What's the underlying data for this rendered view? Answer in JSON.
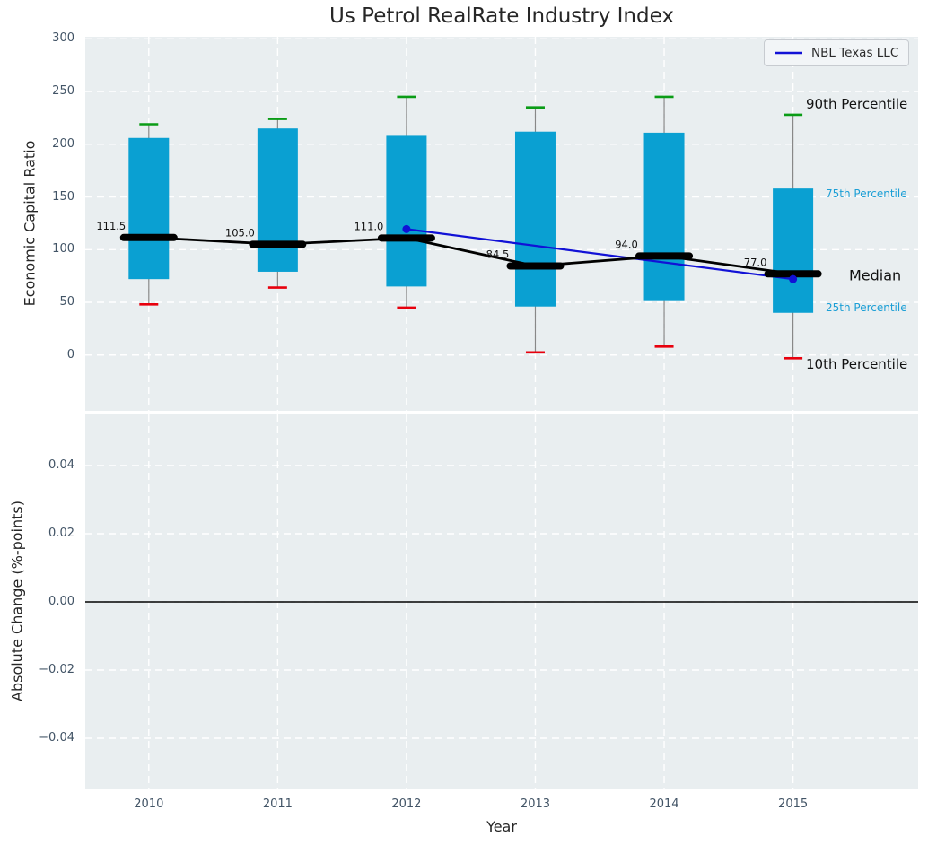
{
  "chart_data": {
    "type": "boxplot_timeseries_with_line",
    "title": "Us Petrol RealRate Industry Index",
    "xlabel": "Year",
    "categories": [
      "2010",
      "2011",
      "2012",
      "2013",
      "2014",
      "2015"
    ],
    "legend_label": "NBL Texas LLC",
    "top_panel": {
      "ylabel": "Economic Capital Ratio",
      "ylim": [
        -53,
        302
      ],
      "yticks": [
        {
          "value": 0,
          "label": "0"
        },
        {
          "value": 50,
          "label": "50"
        },
        {
          "value": 100,
          "label": "100"
        },
        {
          "value": 150,
          "label": "150"
        },
        {
          "value": 200,
          "label": "200"
        },
        {
          "value": 250,
          "label": "250"
        },
        {
          "value": 300,
          "label": "300"
        }
      ],
      "boxes": [
        {
          "year": "2010",
          "p90": 219,
          "p75": 206,
          "median": 111.5,
          "p25": 72,
          "p10": 48,
          "median_label": "111.5"
        },
        {
          "year": "2011",
          "p90": 224,
          "p75": 215,
          "median": 105.0,
          "p25": 79,
          "p10": 64,
          "median_label": "105.0"
        },
        {
          "year": "2012",
          "p90": 245,
          "p75": 208,
          "median": 111.0,
          "p25": 65,
          "p10": 45,
          "median_label": "111.0"
        },
        {
          "year": "2013",
          "p90": 235,
          "p75": 212,
          "median": 84.5,
          "p25": 46,
          "p10": 2.5,
          "median_label": "84.5"
        },
        {
          "year": "2014",
          "p90": 245,
          "p75": 211,
          "median": 94.0,
          "p25": 52,
          "p10": 8,
          "median_label": "94.0"
        },
        {
          "year": "2015",
          "p90": 228,
          "p75": 158,
          "median": 77.0,
          "p25": 40,
          "p10": -3,
          "median_label": "77.0"
        }
      ],
      "nbl_series": {
        "name": "NBL Texas LLC",
        "points": [
          {
            "year": "2012",
            "value": 119.5
          },
          {
            "year": "2015",
            "value": 72
          }
        ]
      },
      "percentile_annotations": [
        {
          "text": "90th Percentile",
          "style": "dark"
        },
        {
          "text": "75th Percentile",
          "style": "blue"
        },
        {
          "text": "Median",
          "style": "dark"
        },
        {
          "text": "25th Percentile",
          "style": "blue"
        },
        {
          "text": "10th Percentile",
          "style": "dark"
        }
      ]
    },
    "bottom_panel": {
      "ylabel": "Absolute Change (%-points)",
      "ylim": [
        -0.055,
        0.055
      ],
      "yticks": [
        {
          "value": 0.04,
          "label": "0.04"
        },
        {
          "value": 0.02,
          "label": "0.02"
        },
        {
          "value": 0.0,
          "label": "0.00"
        },
        {
          "value": -0.02,
          "label": "−0.02"
        },
        {
          "value": -0.04,
          "label": "−0.04"
        }
      ],
      "zero_line_value": 0,
      "series": []
    },
    "colors": {
      "box_fill": "#0aa0d2",
      "whisker": "#888888",
      "cap_high": "#0a9c16",
      "cap_low": "#e8000d",
      "median": "#000000",
      "nbl_line": "#1111d6",
      "panel_bg": "#e9eef0",
      "grid": "#ffffff",
      "tick_text": "#425466",
      "annotation_blue": "#1c9fd6",
      "text_dark": "#111111"
    }
  }
}
